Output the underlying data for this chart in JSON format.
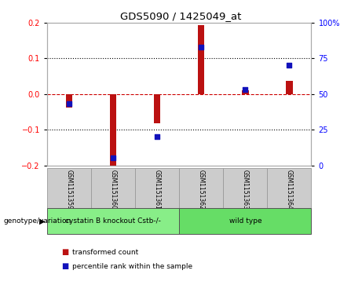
{
  "title": "GDS5090 / 1425049_at",
  "samples": [
    "GSM1151359",
    "GSM1151360",
    "GSM1151361",
    "GSM1151362",
    "GSM1151363",
    "GSM1151364"
  ],
  "transformed_count": [
    -0.038,
    -0.207,
    -0.083,
    0.193,
    0.01,
    0.038
  ],
  "percentile_rank": [
    43,
    5,
    20,
    83,
    53,
    70
  ],
  "ylim_left": [
    -0.2,
    0.2
  ],
  "ylim_right": [
    0,
    100
  ],
  "yticks_left": [
    -0.2,
    -0.1,
    0.0,
    0.1,
    0.2
  ],
  "yticks_right": [
    0,
    25,
    50,
    75,
    100
  ],
  "ytick_labels_right": [
    "0",
    "25",
    "50",
    "75",
    "100%"
  ],
  "bar_color": "#bb1111",
  "dot_color": "#1111bb",
  "zero_line_color": "#cc0000",
  "groups": [
    {
      "label": "cystatin B knockout Cstb-/-",
      "indices": [
        0,
        1,
        2
      ],
      "color": "#88ee88"
    },
    {
      "label": "wild type",
      "indices": [
        3,
        4,
        5
      ],
      "color": "#66dd66"
    }
  ],
  "genotype_label": "genotype/variation",
  "legend_items": [
    {
      "label": "transformed count",
      "color": "#bb1111"
    },
    {
      "label": "percentile rank within the sample",
      "color": "#1111bb"
    }
  ],
  "sample_box_color": "#cccccc",
  "sample_box_edge": "#999999",
  "bar_width": 0.15
}
